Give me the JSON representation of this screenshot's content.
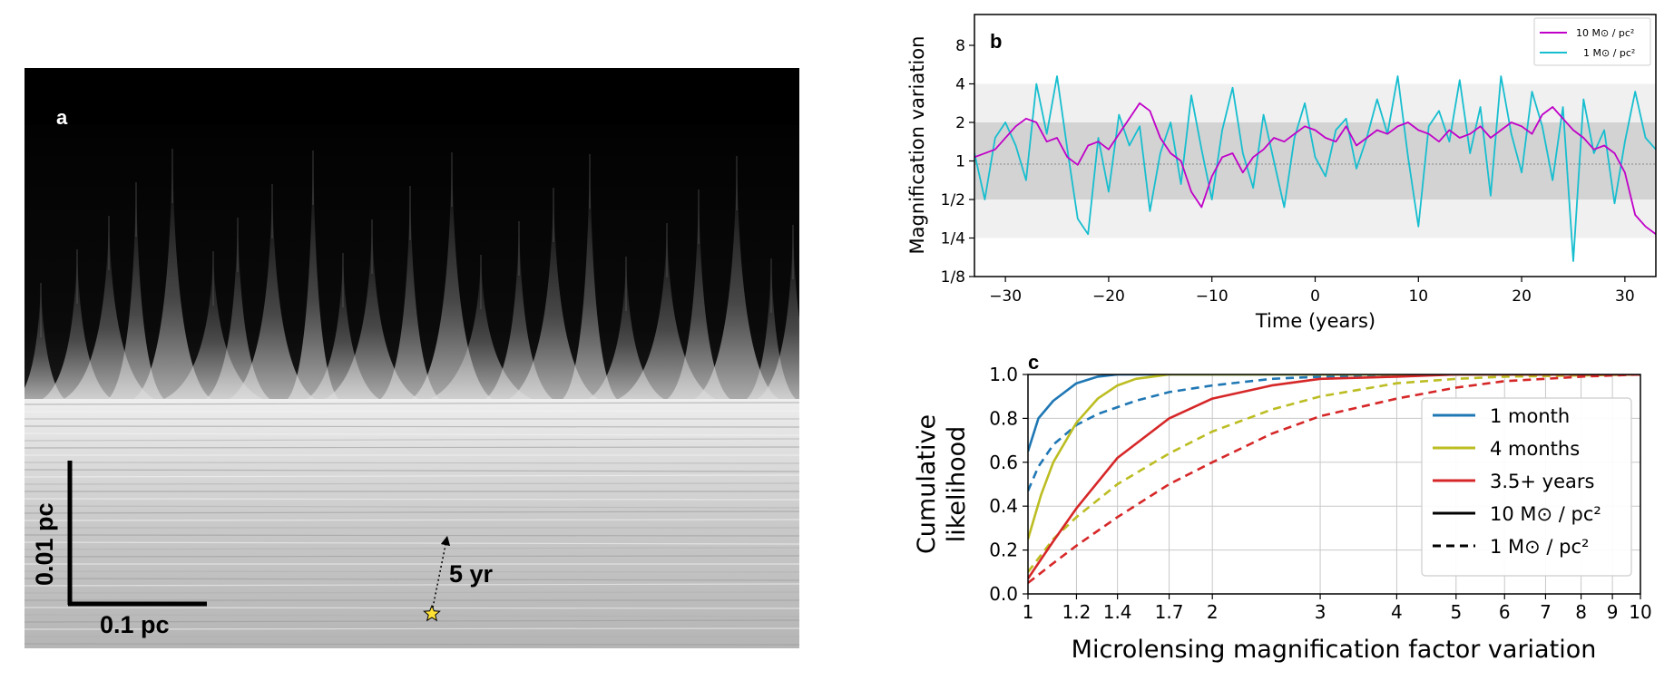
{
  "chart_data": [
    {
      "panel": "a",
      "type": "other",
      "description_label": "a",
      "scale_bar_vertical": "0.01 pc",
      "scale_bar_horizontal": "0.1 pc",
      "trajectory_label": "5 yr",
      "colors": {
        "star": "#ffe135",
        "scalebar": "#000000"
      }
    },
    {
      "panel": "b",
      "type": "line",
      "panel_label": "b",
      "xlabel": "Time (years)",
      "ylabel": "Magnification variation",
      "xlim": [
        -33,
        33
      ],
      "ylim_log2": [
        -3,
        3.8
      ],
      "xticks": [
        -30,
        -20,
        -10,
        0,
        10,
        20,
        30
      ],
      "xtick_labels": [
        "−30",
        "−20",
        "−10",
        "0",
        "10",
        "20",
        "30"
      ],
      "yticks_log2": [
        -3,
        -2,
        -1,
        0,
        1,
        2,
        3
      ],
      "ytick_labels": [
        "1/8",
        "1/4",
        "1/2",
        "1",
        "2",
        "4",
        "8"
      ],
      "bands": [
        {
          "from_log2": -2,
          "to_log2": 2,
          "color": "#f0f0f0"
        },
        {
          "from_log2": -1,
          "to_log2": 1,
          "color": "#d3d3d3"
        }
      ],
      "series": [
        {
          "name": "10 M⊙ / pc²",
          "color": "#c000c8",
          "x": [
            -33,
            -31,
            -29,
            -28,
            -27,
            -26,
            -25,
            -24,
            -23,
            -22,
            -21,
            -20,
            -19,
            -18,
            -17,
            -16,
            -15,
            -14,
            -13,
            -12,
            -11,
            -10,
            -9,
            -8,
            -7,
            -6,
            -5,
            -4,
            -3,
            -2,
            -1,
            0,
            1,
            2,
            3,
            4,
            5,
            6,
            7,
            8,
            9,
            10,
            11,
            12,
            13,
            14,
            15,
            16,
            17,
            18,
            19,
            20,
            21,
            22,
            23,
            24,
            25,
            26,
            27,
            28,
            29,
            30,
            31,
            32,
            33
          ],
          "y_log2": [
            0.1,
            0.3,
            0.9,
            1.1,
            1.0,
            0.5,
            0.6,
            0.1,
            -0.1,
            0.4,
            0.5,
            0.3,
            0.7,
            1.1,
            1.5,
            1.3,
            0.6,
            0.2,
            0.0,
            -0.8,
            -1.2,
            -0.4,
            0.1,
            0.2,
            -0.3,
            0.1,
            0.3,
            0.6,
            0.5,
            0.7,
            0.9,
            0.8,
            0.6,
            0.5,
            0.9,
            0.4,
            0.6,
            0.8,
            0.7,
            0.9,
            1.0,
            0.8,
            0.7,
            0.5,
            0.8,
            0.6,
            0.7,
            0.9,
            0.6,
            0.8,
            1.0,
            0.9,
            0.7,
            1.2,
            1.4,
            1.1,
            0.8,
            0.6,
            0.3,
            0.4,
            0.2,
            -0.3,
            -1.4,
            -1.7,
            -1.9
          ]
        },
        {
          "name": "1 M⊙ / pc²",
          "color": "#17becf",
          "x": [
            -33,
            -32,
            -31,
            -30,
            -29,
            -28,
            -27,
            -26,
            -25,
            -24,
            -23,
            -22,
            -21,
            -20,
            -19,
            -18,
            -17,
            -16,
            -15,
            -14,
            -13,
            -12,
            -11,
            -10,
            -9,
            -8,
            -7,
            -6,
            -5,
            -4,
            -3,
            -2,
            -1,
            0,
            1,
            2,
            3,
            4,
            5,
            6,
            7,
            8,
            9,
            10,
            11,
            12,
            13,
            14,
            15,
            16,
            17,
            18,
            19,
            20,
            21,
            22,
            23,
            24,
            25,
            26,
            27,
            28,
            29,
            30,
            31,
            32,
            33
          ],
          "y_log2": [
            0.2,
            -1.0,
            0.6,
            1.0,
            0.4,
            -0.5,
            2.0,
            0.7,
            2.2,
            0.3,
            -1.5,
            -1.9,
            0.6,
            -0.8,
            1.2,
            0.4,
            0.9,
            -1.3,
            0.2,
            1.0,
            -0.6,
            1.7,
            0.3,
            -1.0,
            0.8,
            1.9,
            0.2,
            -0.7,
            1.2,
            0.0,
            -1.2,
            0.6,
            1.5,
            0.1,
            -0.4,
            0.8,
            1.1,
            -0.2,
            0.6,
            1.6,
            0.7,
            2.2,
            0.1,
            -1.7,
            0.9,
            1.3,
            0.5,
            2.1,
            0.2,
            1.4,
            -0.9,
            2.2,
            0.7,
            -0.3,
            1.8,
            0.9,
            -0.5,
            1.4,
            -2.6,
            1.6,
            0.2,
            0.8,
            -1.1,
            0.5,
            1.8,
            0.6,
            0.3
          ]
        }
      ]
    },
    {
      "panel": "c",
      "type": "line",
      "panel_label": "c",
      "xlabel": "Microlensing magnification factor variation",
      "ylabel_line1": "Cumulative",
      "ylabel_line2": "likelihood",
      "xlim": [
        1,
        10
      ],
      "ylim": [
        0,
        1
      ],
      "xscale": "log",
      "xticks": [
        1,
        1.2,
        1.4,
        1.7,
        2,
        3,
        4,
        5,
        6,
        7,
        8,
        9,
        10
      ],
      "xtick_labels": [
        "1",
        "1.2",
        "1.4",
        "1.7",
        "2",
        "3",
        "4",
        "5",
        "6",
        "7",
        "8",
        "9",
        "10"
      ],
      "yticks": [
        0,
        0.2,
        0.4,
        0.6,
        0.8,
        1.0
      ],
      "ytick_labels": [
        "0.0",
        "0.2",
        "0.4",
        "0.6",
        "0.8",
        "1.0"
      ],
      "legend": {
        "position": "lower-right",
        "entries": [
          {
            "label": "1 month",
            "color": "#1f77b4",
            "style": "solid"
          },
          {
            "label": "4 months",
            "color": "#bcbd22",
            "style": "solid"
          },
          {
            "label": "3.5+ years",
            "color": "#d62728",
            "style": "solid"
          },
          {
            "label": "10 M⊙ / pc²",
            "color": "#000000",
            "style": "solid"
          },
          {
            "label": "1 M⊙ / pc²",
            "color": "#000000",
            "style": "dashed"
          }
        ]
      },
      "series": [
        {
          "name": "1 month, 10 M⊙/pc²",
          "color": "#1f77b4",
          "style": "solid",
          "x": [
            1.0,
            1.04,
            1.1,
            1.2,
            1.3,
            1.4,
            1.5,
            1.7,
            2,
            10
          ],
          "y": [
            0.65,
            0.8,
            0.88,
            0.96,
            0.99,
            1.0,
            1.0,
            1.0,
            1.0,
            1.0
          ]
        },
        {
          "name": "1 month, 1 M⊙/pc²",
          "color": "#1f77b4",
          "style": "dashed",
          "x": [
            1.0,
            1.04,
            1.1,
            1.2,
            1.3,
            1.5,
            1.7,
            2,
            2.5,
            3,
            4,
            10
          ],
          "y": [
            0.47,
            0.58,
            0.68,
            0.77,
            0.82,
            0.88,
            0.92,
            0.95,
            0.98,
            0.99,
            1.0,
            1.0
          ]
        },
        {
          "name": "4 months, 10 M⊙/pc²",
          "color": "#bcbd22",
          "style": "solid",
          "x": [
            1.0,
            1.05,
            1.1,
            1.2,
            1.3,
            1.4,
            1.5,
            1.7,
            2,
            10
          ],
          "y": [
            0.25,
            0.45,
            0.6,
            0.78,
            0.89,
            0.95,
            0.98,
            1.0,
            1.0,
            1.0
          ]
        },
        {
          "name": "4 months, 1 M⊙/pc²",
          "color": "#bcbd22",
          "style": "dashed",
          "x": [
            1.0,
            1.1,
            1.2,
            1.4,
            1.7,
            2,
            2.5,
            3,
            4,
            5,
            6,
            10
          ],
          "y": [
            0.1,
            0.25,
            0.35,
            0.5,
            0.64,
            0.74,
            0.84,
            0.9,
            0.96,
            0.98,
            0.99,
            1.0
          ]
        },
        {
          "name": "3.5+ years, 10 M⊙/pc²",
          "color": "#d62728",
          "style": "solid",
          "x": [
            1.0,
            1.1,
            1.2,
            1.4,
            1.7,
            2,
            2.5,
            3,
            4,
            5,
            10
          ],
          "y": [
            0.07,
            0.24,
            0.39,
            0.62,
            0.8,
            0.89,
            0.95,
            0.98,
            0.99,
            1.0,
            1.0
          ]
        },
        {
          "name": "3.5+ years, 1 M⊙/pc²",
          "color": "#d62728",
          "style": "dashed",
          "x": [
            1.0,
            1.1,
            1.2,
            1.4,
            1.7,
            2,
            2.5,
            3,
            4,
            5,
            6,
            7,
            8,
            10
          ],
          "y": [
            0.05,
            0.14,
            0.22,
            0.35,
            0.5,
            0.6,
            0.73,
            0.81,
            0.89,
            0.94,
            0.97,
            0.98,
            0.99,
            1.0
          ]
        }
      ]
    }
  ]
}
